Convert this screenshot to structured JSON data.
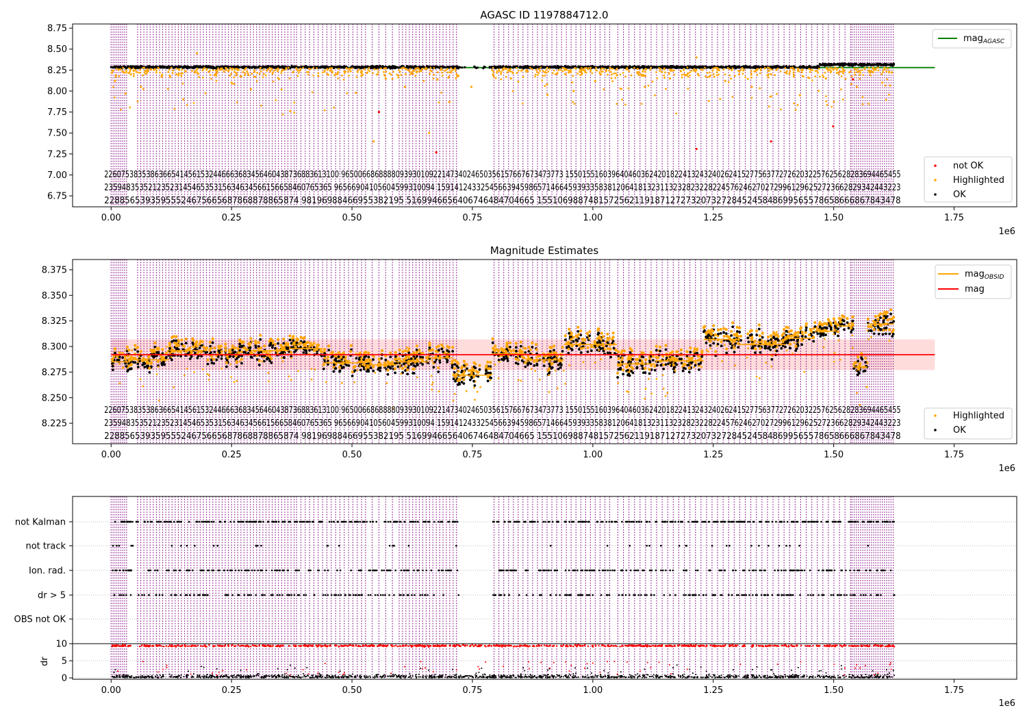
{
  "chart_data": [
    {
      "type": "scatter",
      "title": "AGASC ID 1197884712.0",
      "xlim": [
        -80000,
        1880000
      ],
      "ylim": [
        6.62,
        8.8
      ],
      "x_multiplier_label": "1e6",
      "xticks": [
        0,
        250000,
        500000,
        750000,
        1000000,
        1250000,
        1500000,
        1750000
      ],
      "xtick_labels": [
        "0.00",
        "0.25",
        "0.50",
        "0.75",
        "1.00",
        "1.25",
        "1.50",
        "1.75"
      ],
      "yticks": [
        6.75,
        7.0,
        7.25,
        7.5,
        7.75,
        8.0,
        8.25,
        8.5,
        8.75
      ],
      "ytick_labels": [
        "6.75",
        "7.00",
        "7.25",
        "7.50",
        "7.75",
        "8.00",
        "8.25",
        "8.50",
        "8.75"
      ],
      "lines": [
        {
          "name": "mag$_{AGASC}$",
          "label_text": "mag",
          "label_sub": "AGASC",
          "color": "#008000",
          "x": [
            0,
            1710000
          ],
          "y": [
            8.28,
            8.28
          ]
        }
      ],
      "series": [
        {
          "name": "not OK",
          "color": "#ff0000",
          "x": [
            556000,
            675000,
            1215000,
            1370000,
            1540000,
            1499000
          ],
          "y": [
            7.75,
            7.27,
            7.31,
            7.4,
            8.14,
            7.58
          ]
        },
        {
          "name": "Highlighted",
          "color": "#ffa500",
          "x": [
            8000,
            30000,
            62000,
            105000,
            150000,
            178000,
            250000,
            290000,
            372000,
            430000,
            508000,
            545000,
            570000,
            610000,
            660000,
            702000,
            748000,
            830000,
            905000,
            960000,
            1005000,
            1050000,
            1108000,
            1160000,
            1215000,
            1275000,
            1330000,
            1370000,
            1430000,
            1484000,
            1548000,
            1601000
          ],
          "y": [
            8.12,
            7.97,
            8.05,
            8.17,
            7.9,
            8.45,
            8.1,
            8.02,
            7.76,
            8.18,
            7.98,
            7.4,
            8.15,
            8.05,
            7.5,
            7.87,
            8.05,
            8.15,
            8.08,
            8.0,
            8.12,
            8.19,
            8.05,
            8.15,
            8.4,
            8.12,
            8.05,
            8.2,
            7.95,
            8.15,
            8.05,
            8.1
          ]
        },
        {
          "name": "OK",
          "color": "#000000",
          "band": {
            "x_start": 0,
            "x_end": 1625000,
            "y": [
              8.25,
              8.31
            ]
          }
        }
      ],
      "legend": [
        "not OK",
        "Highlighted",
        "OK"
      ],
      "legend_placement": [
        "upper right",
        "lower right"
      ]
    },
    {
      "type": "scatter",
      "title": "Magnitude Estimates",
      "xlim": [
        -80000,
        1880000
      ],
      "ylim": [
        8.205,
        8.385
      ],
      "x_multiplier_label": "1e6",
      "xticks": [
        0,
        250000,
        500000,
        750000,
        1000000,
        1250000,
        1500000,
        1750000
      ],
      "xtick_labels": [
        "0.00",
        "0.25",
        "0.50",
        "0.75",
        "1.00",
        "1.25",
        "1.50",
        "1.75"
      ],
      "yticks": [
        8.225,
        8.25,
        8.275,
        8.3,
        8.325,
        8.35,
        8.375
      ],
      "ytick_labels": [
        "8.225",
        "8.250",
        "8.275",
        "8.300",
        "8.325",
        "8.350",
        "8.375"
      ],
      "lines": [
        {
          "name": "mag$_{OBSID}$",
          "label_text": "mag",
          "label_sub": "OBSID",
          "color": "#ffa500"
        },
        {
          "name": "mag",
          "label_text": "mag",
          "color": "#ff0000",
          "x": [
            0,
            1710000
          ],
          "y": [
            8.292,
            8.292
          ],
          "band": [
            8.277,
            8.307
          ]
        }
      ],
      "series": [
        {
          "name": "Highlighted",
          "color": "#ffa500"
        },
        {
          "name": "OK",
          "color": "#000000"
        }
      ],
      "segments": [
        [
          0,
          40000,
          8.285
        ],
        [
          40000,
          120000,
          8.287
        ],
        [
          120000,
          200000,
          8.296
        ],
        [
          200000,
          290000,
          8.292
        ],
        [
          290000,
          370000,
          8.296
        ],
        [
          370000,
          440000,
          8.298
        ],
        [
          440000,
          520000,
          8.284
        ],
        [
          520000,
          590000,
          8.282
        ],
        [
          590000,
          660000,
          8.285
        ],
        [
          660000,
          710000,
          8.289
        ],
        [
          710000,
          790000,
          8.272
        ],
        [
          790000,
          860000,
          8.293
        ],
        [
          860000,
          940000,
          8.287
        ],
        [
          940000,
          1050000,
          8.302
        ],
        [
          1050000,
          1130000,
          8.283
        ],
        [
          1130000,
          1230000,
          8.286
        ],
        [
          1230000,
          1300000,
          8.307
        ],
        [
          1300000,
          1400000,
          8.302
        ],
        [
          1400000,
          1460000,
          8.308
        ],
        [
          1460000,
          1510000,
          8.315
        ],
        [
          1510000,
          1540000,
          8.32
        ],
        [
          1540000,
          1570000,
          8.28
        ],
        [
          1570000,
          1625000,
          8.322
        ]
      ],
      "legend": [
        "mag$_{OBSID}$",
        "mag",
        "Highlighted",
        "OK"
      ],
      "legend_placement": [
        "upper right",
        "lower right"
      ]
    },
    {
      "type": "scatter",
      "title": "",
      "xlim": [
        -80000,
        1880000
      ],
      "x_multiplier_label": "1e6",
      "xticks": [
        0,
        250000,
        500000,
        750000,
        1000000,
        1250000,
        1500000,
        1750000
      ],
      "xtick_labels": [
        "0.00",
        "0.25",
        "0.50",
        "0.75",
        "1.00",
        "1.25",
        "1.50",
        "1.75"
      ],
      "flags_ytick_labels": [
        "not Kalman",
        "not track",
        "Ion. rad.",
        "dr > 5",
        "OBS not OK"
      ],
      "dr_ylabel": "dr",
      "dr_ylim": [
        0,
        10
      ],
      "dr_ytick_labels": [
        "0",
        "5",
        "10"
      ]
    }
  ],
  "obsid_label_rows": [
    "2<span>2</span>",
    "2<span>3</span>",
    "2<span>2</span>"
  ],
  "obsid_labels": {
    "row1": [
      "2",
      "2",
      "6",
      "0",
      "7",
      "5",
      "3",
      "9",
      "3",
      "5",
      "3",
      "3",
      "3",
      "5",
      "3",
      "1",
      "6",
      "3",
      "4",
      "5",
      "1",
      "1",
      "3",
      "3",
      "2",
      "1",
      "6",
      "1",
      "4",
      "4",
      "6",
      "3",
      "3",
      "3",
      "6",
      "3",
      "1",
      "3",
      "0",
      "9",
      "6",
      "1",
      "3",
      "2",
      "1",
      "4",
      "3",
      "4",
      "9",
      "4",
      "2",
      "6",
      "1",
      "7",
      "3",
      "1",
      "5",
      "0",
      "1",
      "5",
      "7",
      "3",
      "8",
      "6",
      "0",
      "4",
      "2",
      "0",
      "4",
      "8",
      "0",
      "1",
      "8",
      "2",
      "4",
      "3",
      "2",
      "4",
      "0",
      "2",
      "6",
      "1",
      "4",
      "5",
      "7",
      "7",
      "5",
      "8",
      "2",
      "7",
      "7",
      "5",
      "2",
      "0",
      "2",
      "5",
      "8",
      "2",
      "7",
      "8",
      "6",
      "0",
      "6",
      "4",
      "5",
      "5"
    ],
    "row2": [
      "2",
      "3",
      "8",
      "9",
      "4",
      "8",
      "3",
      "5",
      "3",
      "2",
      "2",
      "2",
      "1",
      "5",
      "2",
      "3",
      "5",
      "3",
      "1",
      "5",
      "4",
      "6",
      "5",
      "6",
      "3",
      "3",
      "8",
      "6",
      "6",
      "5",
      "6",
      "5",
      "8",
      "4",
      "6",
      "3",
      "6",
      "5",
      "9",
      "6",
      "1",
      "0",
      "3",
      "0",
      "9",
      "4",
      "1",
      "5",
      "5",
      "9",
      "4",
      "4",
      "4",
      "2",
      "1",
      "2",
      "5",
      "1",
      "5",
      "9",
      "4",
      "6",
      "5",
      "7",
      "1",
      "4",
      "6",
      "6",
      "4",
      "5",
      "5",
      "3",
      "9",
      "8",
      "1",
      "0",
      "4",
      "2",
      "1",
      "3",
      "2",
      "1",
      "8",
      "2",
      "3",
      "2",
      "2",
      "8",
      "2",
      "8",
      "1",
      "4",
      "2",
      "4",
      "6",
      "7",
      "5",
      "2",
      "3",
      "0",
      "2",
      "9",
      "2",
      "9",
      "6",
      "2",
      "5",
      "2",
      "2",
      "2",
      "8",
      "4",
      "4",
      "3",
      "2",
      "3"
    ],
    "row3": [
      "2",
      "2",
      "8",
      "8",
      "5",
      "6",
      "5",
      "3",
      "9",
      "3",
      "4",
      "5",
      "5",
      "5",
      "2",
      "4",
      "6",
      "1",
      "6",
      "5",
      "1",
      "5",
      "6",
      "6",
      "8",
      "6",
      "6",
      "5",
      "4",
      "4",
      "8",
      "7",
      "8",
      "7",
      "6",
      "8",
      "8",
      "6",
      "4",
      "9",
      "8",
      "1",
      "9",
      "6",
      "4",
      "6",
      "5",
      "2",
      "1",
      "9",
      "5",
      "5",
      "1",
      "6",
      "8",
      "9",
      "4",
      "4",
      "4",
      "6",
      "4",
      "7",
      "0",
      "4",
      "6",
      "6",
      "5",
      "1",
      "5",
      "6",
      "0",
      "8",
      "7",
      "3",
      "8",
      "1",
      "7",
      "9",
      "3",
      "2",
      "1",
      "9",
      "1",
      "8",
      "0",
      "7",
      "2",
      "0",
      "8",
      "2",
      "0",
      "2",
      "8",
      "4",
      "5",
      "2",
      "4",
      "9",
      "5",
      "6",
      "7",
      "5",
      "8",
      "5",
      "7",
      "8",
      "4",
      "8",
      "7",
      "8"
    ]
  },
  "obsid_strings": {
    "top_row1": "22607538353863665414561532446663683456460438736883613100  96500668688880939301092214734024650356157667673473773  15501551603964046036242018224132432402624152775637727262032257625628283694465455",
    "top_row2": "2359483535212352314546535315634634566156658460765365  96566904105604599310094  1591412433254566394598657146645939335838120641813231132328232282245762462702729961296252723662829342443223",
    "top_row3": "22885653935955524675665687868878865874  98196988466955382195  5169946656406746484704665  15510698874815725621191871272732073272845245848699565578658666867843478"
  },
  "texts": {
    "p1_title": "AGASC ID 1197884712.0",
    "p2_title": "Magnitude Estimates",
    "x_mult": "1e6",
    "legend_agasc_main": "mag",
    "legend_agasc_sub": "AGASC",
    "legend_notok": "not OK",
    "legend_highlighted": "Highlighted",
    "legend_ok": "OK",
    "legend_obsid_main": "mag",
    "legend_obsid_sub": "OBSID",
    "legend_mag": "mag",
    "flag_not_kalman": "not Kalman",
    "flag_not_track": "not track",
    "flag_ion_rad": "Ion. rad.",
    "flag_dr5": "dr > 5",
    "flag_obs_not_ok": "OBS not OK",
    "dr_label": "dr"
  },
  "colors": {
    "agasc_line": "#008000",
    "not_ok": "#ff0000",
    "highlighted": "#ffa500",
    "ok": "#000000",
    "obsid_line": "#ffa500",
    "mag_line": "#ff0000",
    "mag_band": "#ffd6d6",
    "vlines": "#800080"
  }
}
